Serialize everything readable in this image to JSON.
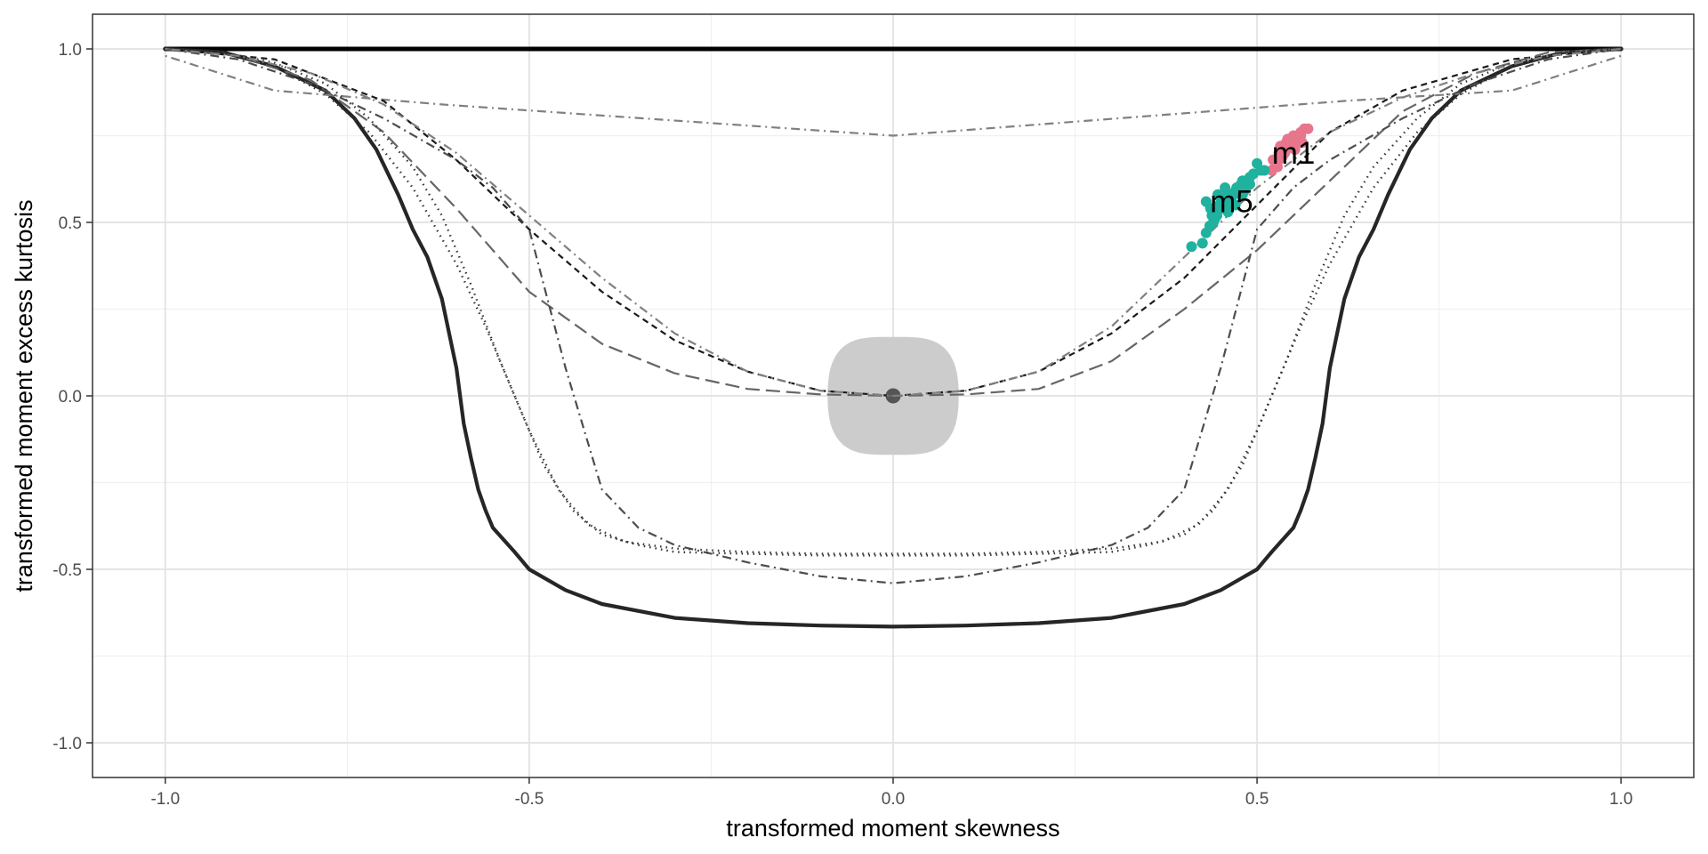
{
  "chart_data": {
    "type": "line",
    "title": "",
    "xlabel": "transformed moment skewness",
    "ylabel": "transformed moment excess kurtosis",
    "xlim": [
      -1.1,
      1.1
    ],
    "ylim": [
      -1.1,
      1.1
    ],
    "x_ticks": [
      -1.0,
      -0.5,
      0.0,
      0.5,
      1.0
    ],
    "x_tick_labels": [
      "-1.0",
      "-0.5",
      "0.0",
      "0.5",
      "1.0"
    ],
    "y_ticks": [
      -1.0,
      -0.5,
      0.0,
      0.5,
      1.0
    ],
    "y_tick_labels": [
      "-1.0",
      "-0.5",
      "0.0",
      "0.5",
      "1.0"
    ],
    "grid": true,
    "legend": "none",
    "reference_region": {
      "center": [
        0.0,
        0.0
      ],
      "x_half_width": 0.09,
      "y_half_height": 0.17,
      "fill": "#cccccc",
      "center_point_color": "#555555"
    },
    "series": [
      {
        "style": "solid-thick",
        "color": "#000000",
        "x": [
          -1.0,
          1.0
        ],
        "y": [
          1.0,
          1.0
        ]
      },
      {
        "style": "solid",
        "color": "#262626",
        "x": [
          -1.0,
          -0.92,
          -0.85,
          -0.78,
          -0.74,
          -0.71,
          -0.68,
          -0.66,
          -0.64,
          -0.62,
          -0.61,
          -0.6,
          -0.59,
          -0.58,
          -0.57,
          -0.56,
          -0.55,
          -0.52,
          -0.5,
          -0.45,
          -0.4,
          -0.3,
          -0.2,
          -0.1,
          0.0,
          0.1,
          0.2,
          0.3,
          0.4,
          0.45,
          0.5,
          0.52,
          0.55,
          0.56,
          0.57,
          0.58,
          0.59,
          0.6,
          0.61,
          0.62,
          0.64,
          0.66,
          0.68,
          0.71,
          0.74,
          0.78,
          0.85,
          0.92,
          1.0
        ],
        "y": [
          1.0,
          0.99,
          0.95,
          0.88,
          0.8,
          0.71,
          0.58,
          0.48,
          0.4,
          0.28,
          0.18,
          0.08,
          -0.08,
          -0.18,
          -0.27,
          -0.33,
          -0.38,
          -0.45,
          -0.5,
          -0.56,
          -0.6,
          -0.64,
          -0.655,
          -0.662,
          -0.665,
          -0.662,
          -0.655,
          -0.64,
          -0.6,
          -0.56,
          -0.5,
          -0.45,
          -0.38,
          -0.33,
          -0.27,
          -0.18,
          -0.08,
          0.08,
          0.18,
          0.28,
          0.4,
          0.48,
          0.58,
          0.71,
          0.8,
          0.88,
          0.95,
          0.99,
          1.0
        ]
      },
      {
        "style": "dotdash",
        "color": "#808080",
        "x": [
          -1.0,
          -0.85,
          -0.62,
          0.0,
          0.62,
          0.85,
          1.0
        ],
        "y": [
          0.98,
          0.88,
          0.84,
          0.75,
          0.85,
          0.88,
          0.98
        ]
      },
      {
        "style": "dashed",
        "color": "#1a1a1a",
        "x": [
          -1.0,
          -0.85,
          -0.7,
          -0.6,
          -0.5,
          -0.4,
          -0.3,
          -0.2,
          -0.1,
          0.0,
          0.1,
          0.2,
          0.3,
          0.4,
          0.5,
          0.6,
          0.7,
          0.85,
          1.0
        ],
        "y": [
          1.0,
          0.97,
          0.85,
          0.68,
          0.48,
          0.3,
          0.16,
          0.07,
          0.015,
          0.0,
          0.015,
          0.07,
          0.18,
          0.34,
          0.55,
          0.76,
          0.88,
          0.97,
          1.0
        ]
      },
      {
        "style": "longdash",
        "color": "#666666",
        "x": [
          -1.0,
          -0.9,
          -0.8,
          -0.7,
          -0.6,
          -0.5,
          -0.4,
          -0.3,
          -0.2,
          -0.1,
          0.0,
          0.1,
          0.2,
          0.3,
          0.4,
          0.5,
          0.6,
          0.7,
          0.8,
          0.9,
          1.0
        ],
        "y": [
          1.0,
          0.98,
          0.91,
          0.76,
          0.54,
          0.3,
          0.15,
          0.065,
          0.02,
          0.004,
          0.0,
          0.004,
          0.02,
          0.1,
          0.25,
          0.42,
          0.62,
          0.82,
          0.93,
          0.99,
          1.0
        ]
      },
      {
        "style": "dotdash",
        "color": "#4d4d4d",
        "x": [
          -1.0,
          -0.9,
          -0.8,
          -0.7,
          -0.6,
          -0.55,
          -0.5,
          -0.45,
          -0.4,
          -0.35,
          -0.3,
          -0.2,
          -0.1,
          0.0,
          0.1,
          0.2,
          0.3,
          0.35,
          0.4,
          0.45,
          0.5,
          0.55,
          0.6,
          0.7,
          0.8,
          0.9,
          1.0
        ],
        "y": [
          1.0,
          0.97,
          0.9,
          0.8,
          0.68,
          0.6,
          0.48,
          0.08,
          -0.27,
          -0.38,
          -0.43,
          -0.48,
          -0.52,
          -0.54,
          -0.52,
          -0.48,
          -0.43,
          -0.38,
          -0.27,
          0.08,
          0.48,
          0.6,
          0.68,
          0.8,
          0.9,
          0.97,
          1.0
        ]
      },
      {
        "style": "dotted",
        "color": "#333333",
        "x": [
          -1.0,
          -0.92,
          -0.85,
          -0.78,
          -0.72,
          -0.66,
          -0.6,
          -0.56,
          -0.52,
          -0.48,
          -0.44,
          -0.4,
          -0.35,
          -0.3,
          -0.2,
          -0.1,
          0.0,
          0.1,
          0.2,
          0.3,
          0.35,
          0.4,
          0.44,
          0.48,
          0.52,
          0.56,
          0.6,
          0.66,
          0.72,
          0.78,
          0.85,
          0.92,
          1.0
        ],
        "y": [
          1.0,
          0.99,
          0.95,
          0.87,
          0.76,
          0.6,
          0.38,
          0.2,
          0.0,
          -0.2,
          -0.33,
          -0.4,
          -0.43,
          -0.45,
          -0.455,
          -0.46,
          -0.46,
          -0.46,
          -0.455,
          -0.45,
          -0.43,
          -0.4,
          -0.33,
          -0.2,
          0.0,
          0.2,
          0.38,
          0.6,
          0.76,
          0.87,
          0.95,
          0.99,
          1.0
        ]
      },
      {
        "style": "dotted",
        "color": "#333333",
        "x": [
          -1.0,
          -0.92,
          -0.85,
          -0.78,
          -0.72,
          -0.66,
          -0.62,
          -0.58,
          -0.54,
          -0.5,
          -0.46,
          -0.42,
          -0.37,
          -0.3,
          -0.2,
          -0.1,
          0.0,
          0.1,
          0.2,
          0.3,
          0.37,
          0.42,
          0.46,
          0.5,
          0.54,
          0.58,
          0.62,
          0.66,
          0.72,
          0.78,
          0.85,
          0.92,
          1.0
        ],
        "y": [
          1.0,
          0.99,
          0.96,
          0.9,
          0.8,
          0.66,
          0.52,
          0.32,
          0.1,
          -0.1,
          -0.27,
          -0.37,
          -0.42,
          -0.44,
          -0.45,
          -0.455,
          -0.455,
          -0.455,
          -0.45,
          -0.44,
          -0.42,
          -0.37,
          -0.27,
          -0.1,
          0.1,
          0.32,
          0.52,
          0.66,
          0.8,
          0.9,
          0.96,
          0.99,
          1.0
        ]
      },
      {
        "style": "dotdash",
        "color": "#808080",
        "x": [
          -1.0,
          -0.9,
          -0.8,
          -0.7,
          -0.6,
          -0.5,
          -0.4,
          -0.3,
          -0.2,
          -0.1,
          0.0,
          0.1,
          0.2,
          0.3,
          0.4,
          0.5,
          0.6,
          0.7,
          0.8,
          0.9,
          1.0
        ],
        "y": [
          1.0,
          0.98,
          0.93,
          0.84,
          0.7,
          0.52,
          0.34,
          0.18,
          0.07,
          0.015,
          0.0,
          0.015,
          0.07,
          0.2,
          0.4,
          0.6,
          0.76,
          0.86,
          0.93,
          0.98,
          1.0
        ]
      }
    ],
    "point_clouds": [
      {
        "label": "m1",
        "color": "#E7768C",
        "label_x": 0.55,
        "label_y": 0.7,
        "x": [
          0.52,
          0.525,
          0.53,
          0.53,
          0.535,
          0.54,
          0.54,
          0.545,
          0.55,
          0.55,
          0.555,
          0.56,
          0.56,
          0.565,
          0.57,
          0.528,
          0.538,
          0.548,
          0.558,
          0.522,
          0.532,
          0.542,
          0.552,
          0.562
        ],
        "y": [
          0.65,
          0.67,
          0.68,
          0.7,
          0.69,
          0.71,
          0.73,
          0.72,
          0.74,
          0.75,
          0.73,
          0.76,
          0.75,
          0.77,
          0.77,
          0.66,
          0.7,
          0.72,
          0.74,
          0.68,
          0.72,
          0.74,
          0.71,
          0.73
        ]
      },
      {
        "label": "m5",
        "color": "#1FB29F",
        "label_x": 0.465,
        "label_y": 0.56,
        "x": [
          0.41,
          0.425,
          0.43,
          0.43,
          0.435,
          0.44,
          0.44,
          0.445,
          0.45,
          0.45,
          0.455,
          0.46,
          0.46,
          0.465,
          0.47,
          0.47,
          0.475,
          0.48,
          0.48,
          0.485,
          0.49,
          0.49,
          0.495,
          0.5,
          0.505,
          0.51,
          0.438,
          0.448,
          0.458,
          0.468,
          0.478,
          0.488,
          0.442,
          0.452,
          0.462,
          0.472,
          0.482,
          0.436,
          0.446,
          0.456
        ],
        "y": [
          0.43,
          0.44,
          0.47,
          0.56,
          0.49,
          0.5,
          0.53,
          0.52,
          0.54,
          0.57,
          0.55,
          0.53,
          0.58,
          0.56,
          0.59,
          0.55,
          0.6,
          0.58,
          0.62,
          0.6,
          0.63,
          0.61,
          0.64,
          0.67,
          0.65,
          0.65,
          0.52,
          0.55,
          0.57,
          0.58,
          0.61,
          0.62,
          0.51,
          0.56,
          0.55,
          0.6,
          0.59,
          0.54,
          0.58,
          0.6
        ]
      }
    ]
  }
}
